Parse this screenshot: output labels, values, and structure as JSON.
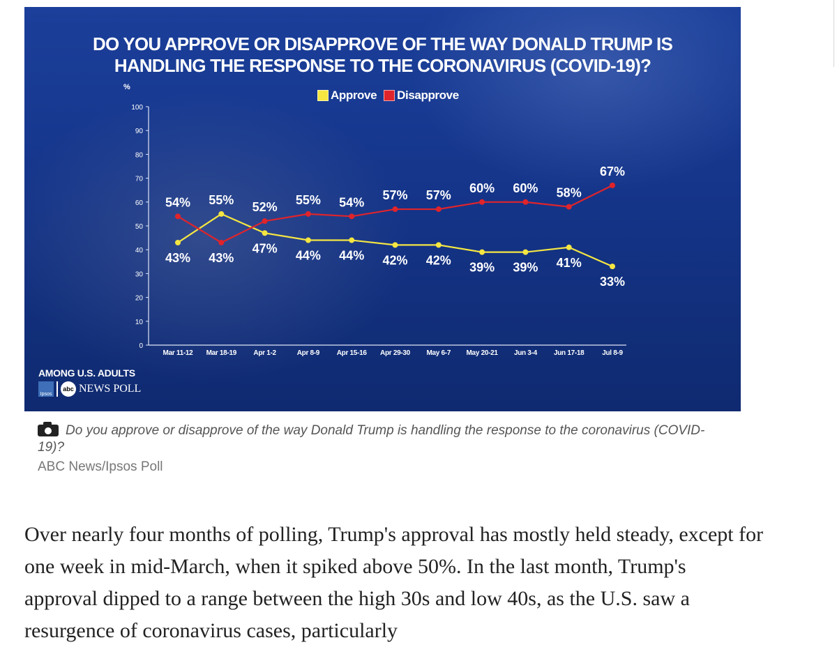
{
  "chart_data": {
    "type": "line",
    "title_lines": [
      "DO YOU APPROVE OR DISAPPROVE OF THE WAY DONALD TRUMP IS",
      "HANDLING THE RESPONSE TO THE CORONAVIRUS (COVID-19)?"
    ],
    "ylabel": "%",
    "ylim": [
      0,
      100
    ],
    "yticks": [
      "0",
      "10",
      "20",
      "30",
      "40",
      "50",
      "60",
      "70",
      "80",
      "90",
      "100"
    ],
    "categories": [
      "Mar 11-12",
      "Mar 18-19",
      "Apr 1-2",
      "Apr 8-9",
      "Apr 15-16",
      "Apr 29-30",
      "May 6-7",
      "May 20-21",
      "Jun 3-4",
      "Jun 17-18",
      "Jul 8-9"
    ],
    "series": [
      {
        "name": "Approve",
        "color": "#f5e642",
        "values": [
          43,
          55,
          47,
          44,
          44,
          42,
          42,
          39,
          39,
          41,
          33
        ],
        "labels": [
          "43%",
          "55%",
          "47%",
          "44%",
          "44%",
          "42%",
          "42%",
          "39%",
          "39%",
          "41%",
          "33%"
        ]
      },
      {
        "name": "Disapprove",
        "color": "#e0242b",
        "values": [
          54,
          43,
          52,
          55,
          54,
          57,
          57,
          60,
          60,
          58,
          67
        ],
        "labels": [
          "54%",
          "43%",
          "52%",
          "55%",
          "54%",
          "57%",
          "57%",
          "60%",
          "60%",
          "58%",
          "67%"
        ]
      }
    ],
    "legend": "top-center",
    "grid": false,
    "footer_note": "AMONG U.S. ADULTS"
  },
  "logos": {
    "ipsos": "Ipsos",
    "abc": "abc",
    "news_poll": "NEWS POLL"
  },
  "caption": {
    "text": "Do you approve or disapprove of the way Donald Trump is handling the response to the coronavirus (COVID-19)?",
    "credit": "ABC News/Ipsos Poll"
  },
  "article": {
    "text": "Over nearly four months of polling, Trump's approval has mostly held steady, except for one week in mid-March, when it spiked above 50%. In the last month, Trump's approval dipped to a range between the high 30s and low 40s, as the U.S. saw a resurgence of coronavirus cases, particularly"
  }
}
